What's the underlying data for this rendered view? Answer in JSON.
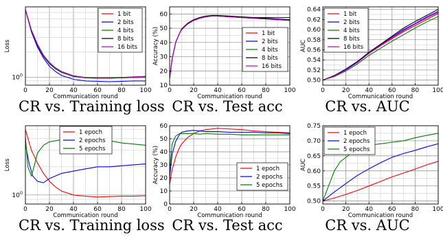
{
  "captions": [
    "CR vs. Training loss",
    "CR vs. Test acc",
    "CR vs. AUC",
    "CR vs. Training loss",
    "CR vs. Test acc",
    "CR vs. AUC"
  ],
  "chart_data": [
    {
      "type": "line",
      "xlabel": "Communication round",
      "ylabel": "Loss",
      "xlim": [
        0,
        100
      ],
      "xticks": [
        0,
        20,
        40,
        60,
        80,
        100
      ],
      "yscale": "log",
      "yticks": [
        1
      ],
      "ytick_labels": [
        "10^0"
      ],
      "grid": true,
      "legend": "top-right",
      "series": [
        {
          "name": "1 bit",
          "color": "#ff0000",
          "x": [
            0,
            5,
            10,
            15,
            20,
            25,
            30,
            40,
            50,
            60,
            70,
            80,
            90,
            100
          ],
          "y": [
            6.5,
            3.6,
            2.4,
            1.8,
            1.45,
            1.27,
            1.15,
            1.03,
            0.99,
            0.98,
            0.98,
            0.99,
            1.0,
            1.0
          ]
        },
        {
          "name": "2 bits",
          "color": "#0000ff",
          "x": [
            0,
            5,
            10,
            15,
            20,
            25,
            30,
            40,
            50,
            60,
            70,
            80,
            90,
            100
          ],
          "y": [
            6.5,
            3.5,
            2.3,
            1.7,
            1.35,
            1.17,
            1.05,
            0.94,
            0.9,
            0.89,
            0.88,
            0.89,
            0.9,
            0.9
          ]
        },
        {
          "name": "4 bits",
          "color": "#008000",
          "x": [
            0,
            5,
            10,
            15,
            20,
            25,
            30,
            40,
            50,
            60,
            70,
            80,
            90,
            100
          ],
          "y": [
            6.5,
            3.7,
            2.5,
            1.85,
            1.5,
            1.3,
            1.17,
            1.04,
            0.99,
            0.98,
            0.98,
            0.99,
            1.01,
            1.02
          ]
        },
        {
          "name": "8 bits",
          "color": "#000000",
          "x": [
            0,
            5,
            10,
            15,
            20,
            25,
            30,
            40,
            50,
            60,
            70,
            80,
            90,
            100
          ],
          "y": [
            6.5,
            3.6,
            2.4,
            1.78,
            1.45,
            1.26,
            1.14,
            1.02,
            0.98,
            0.97,
            0.97,
            0.98,
            0.99,
            1.0
          ]
        },
        {
          "name": "16 bits",
          "color": "#c000c0",
          "x": [
            0,
            5,
            10,
            15,
            20,
            25,
            30,
            40,
            50,
            60,
            70,
            80,
            90,
            100
          ],
          "y": [
            6.5,
            3.65,
            2.45,
            1.8,
            1.47,
            1.27,
            1.15,
            1.03,
            0.98,
            0.97,
            0.97,
            0.98,
            0.99,
            1.0
          ]
        }
      ]
    },
    {
      "type": "line",
      "xlabel": "Communication round",
      "ylabel": "Accuracy (%)",
      "xlim": [
        0,
        100
      ],
      "ylim": [
        10,
        65
      ],
      "xticks": [
        0,
        20,
        40,
        60,
        80,
        100
      ],
      "yticks": [
        10,
        20,
        30,
        40,
        50,
        60
      ],
      "grid": true,
      "legend": "bottom-right",
      "series": [
        {
          "name": "1 bit",
          "color": "#ff0000",
          "x": [
            0,
            2,
            5,
            8,
            10,
            15,
            20,
            25,
            30,
            35,
            40,
            50,
            60,
            70,
            80,
            90,
            100
          ],
          "y": [
            15,
            28,
            40,
            46,
            49,
            53,
            55.5,
            57,
            58,
            58.5,
            58.5,
            58,
            57.5,
            57,
            56.5,
            56,
            55.5
          ]
        },
        {
          "name": "2 bits",
          "color": "#0000ff",
          "x": [
            0,
            2,
            5,
            8,
            10,
            15,
            20,
            25,
            30,
            35,
            40,
            50,
            60,
            70,
            80,
            90,
            100
          ],
          "y": [
            15,
            28,
            40,
            46,
            49,
            53,
            55.5,
            57,
            58,
            58.5,
            58.5,
            58,
            57.5,
            57.5,
            57.5,
            57.5,
            57.5
          ]
        },
        {
          "name": "4 bits",
          "color": "#008000",
          "x": [
            0,
            2,
            5,
            8,
            10,
            15,
            20,
            25,
            30,
            35,
            40,
            50,
            60,
            70,
            80,
            90,
            100
          ],
          "y": [
            15,
            28,
            40,
            46,
            49,
            53,
            55.5,
            57,
            58,
            58.5,
            58.5,
            58,
            57.5,
            57,
            56.5,
            56,
            56
          ]
        },
        {
          "name": "8 bits",
          "color": "#000000",
          "x": [
            0,
            2,
            5,
            8,
            10,
            15,
            20,
            25,
            30,
            35,
            40,
            50,
            60,
            70,
            80,
            90,
            100
          ],
          "y": [
            15,
            28,
            40,
            46,
            49.5,
            53.5,
            56,
            57.5,
            58.5,
            59,
            59,
            58.5,
            58,
            57.5,
            57,
            56.5,
            56
          ]
        },
        {
          "name": "16 bits",
          "color": "#c000c0",
          "x": [
            0,
            2,
            5,
            8,
            10,
            15,
            20,
            25,
            30,
            35,
            40,
            50,
            60,
            70,
            80,
            90,
            100
          ],
          "y": [
            15,
            28,
            40,
            46,
            49,
            53,
            55.5,
            57,
            58,
            58.5,
            58.5,
            58,
            57.5,
            57,
            56.5,
            56,
            55.5
          ]
        }
      ]
    },
    {
      "type": "line",
      "xlabel": "Communication round",
      "ylabel": "AUC",
      "xlim": [
        0,
        100
      ],
      "ylim": [
        0.49,
        0.645
      ],
      "xticks": [
        0,
        20,
        40,
        60,
        80,
        100
      ],
      "yticks": [
        0.5,
        0.52,
        0.54,
        0.56,
        0.58,
        0.6,
        0.62,
        0.64
      ],
      "grid": true,
      "legend": "top-left",
      "series": [
        {
          "name": "1 bit",
          "color": "#ff0000",
          "x": [
            0,
            10,
            20,
            30,
            40,
            50,
            60,
            70,
            80,
            90,
            100
          ],
          "y": [
            0.5,
            0.508,
            0.52,
            0.535,
            0.553,
            0.568,
            0.582,
            0.596,
            0.608,
            0.62,
            0.632
          ]
        },
        {
          "name": "2 bits",
          "color": "#0000ff",
          "x": [
            0,
            10,
            20,
            30,
            40,
            50,
            60,
            70,
            80,
            90,
            100
          ],
          "y": [
            0.5,
            0.509,
            0.522,
            0.537,
            0.555,
            0.57,
            0.585,
            0.6,
            0.612,
            0.625,
            0.636
          ]
        },
        {
          "name": "4 bits",
          "color": "#008000",
          "x": [
            0,
            10,
            20,
            30,
            40,
            50,
            60,
            70,
            80,
            90,
            100
          ],
          "y": [
            0.5,
            0.507,
            0.518,
            0.532,
            0.549,
            0.563,
            0.577,
            0.59,
            0.603,
            0.615,
            0.626
          ]
        },
        {
          "name": "8 bits",
          "color": "#000000",
          "x": [
            0,
            10,
            20,
            30,
            40,
            50,
            60,
            70,
            80,
            90,
            100
          ],
          "y": [
            0.5,
            0.509,
            0.521,
            0.536,
            0.555,
            0.571,
            0.587,
            0.603,
            0.616,
            0.628,
            0.64
          ]
        },
        {
          "name": "16 bits",
          "color": "#c000c0",
          "x": [
            0,
            10,
            20,
            30,
            40,
            50,
            60,
            70,
            80,
            90,
            100
          ],
          "y": [
            0.5,
            0.508,
            0.52,
            0.535,
            0.553,
            0.569,
            0.584,
            0.598,
            0.611,
            0.623,
            0.634
          ]
        }
      ]
    },
    {
      "type": "line",
      "xlabel": "Communication round",
      "ylabel": "Loss",
      "xlim": [
        0,
        100
      ],
      "xticks": [
        0,
        20,
        40,
        60,
        80,
        100
      ],
      "yscale": "log",
      "yticks": [
        1
      ],
      "ytick_labels": [
        "10^0"
      ],
      "grid": true,
      "legend": "top-center",
      "series": [
        {
          "name": "1 epoch",
          "color": "#ff0000",
          "x": [
            0,
            5,
            10,
            15,
            20,
            25,
            30,
            40,
            50,
            60,
            70,
            80,
            90,
            100
          ],
          "y": [
            5.0,
            3.0,
            2.2,
            1.7,
            1.4,
            1.22,
            1.1,
            1.0,
            0.97,
            0.95,
            0.96,
            0.97,
            0.97,
            0.98
          ]
        },
        {
          "name": "2 epochs",
          "color": "#0000ff",
          "x": [
            0,
            3,
            6,
            10,
            15,
            20,
            30,
            40,
            50,
            60,
            70,
            80,
            90,
            100
          ],
          "y": [
            3.5,
            2.2,
            1.6,
            1.4,
            1.35,
            1.5,
            1.7,
            1.8,
            1.9,
            2.0,
            2.0,
            2.05,
            2.1,
            2.15
          ]
        },
        {
          "name": "5 epochs",
          "color": "#008000",
          "x": [
            0,
            2,
            5,
            8,
            10,
            15,
            20,
            30,
            40,
            50,
            60,
            70,
            80,
            90,
            100
          ],
          "y": [
            4.2,
            2.0,
            1.6,
            2.2,
            2.8,
            3.4,
            3.7,
            3.9,
            3.8,
            3.7,
            3.7,
            3.8,
            3.6,
            3.5,
            3.4
          ]
        }
      ]
    },
    {
      "type": "line",
      "xlabel": "Communication round",
      "ylabel": "Accuracy (%)",
      "xlim": [
        0,
        100
      ],
      "ylim": [
        0,
        60
      ],
      "xticks": [
        0,
        20,
        40,
        60,
        80,
        100
      ],
      "yticks": [
        0,
        10,
        20,
        30,
        40,
        50,
        60
      ],
      "grid": true,
      "legend": "bottom-right",
      "series": [
        {
          "name": "1 epoch",
          "color": "#ff0000",
          "x": [
            0,
            2,
            5,
            8,
            10,
            15,
            20,
            25,
            30,
            40,
            50,
            60,
            70,
            80,
            90,
            100
          ],
          "y": [
            15,
            26,
            36,
            43,
            46,
            51,
            54,
            56,
            57,
            58,
            57.5,
            57,
            56,
            55.5,
            55,
            54.5
          ]
        },
        {
          "name": "2 epochs",
          "color": "#0000ff",
          "x": [
            0,
            2,
            5,
            8,
            10,
            15,
            20,
            25,
            30,
            40,
            50,
            60,
            70,
            80,
            90,
            100
          ],
          "y": [
            20,
            38,
            48,
            53,
            55,
            56,
            56.5,
            56,
            55.5,
            55.5,
            55,
            55,
            55,
            54.5,
            54.5,
            54
          ]
        },
        {
          "name": "5 epochs",
          "color": "#008000",
          "x": [
            0,
            2,
            5,
            8,
            10,
            15,
            20,
            25,
            30,
            40,
            50,
            60,
            70,
            80,
            90,
            100
          ],
          "y": [
            25,
            46,
            52,
            54,
            54,
            54,
            54,
            53.5,
            54,
            53.5,
            53.5,
            53,
            53,
            53,
            53,
            53
          ]
        }
      ]
    },
    {
      "type": "line",
      "xlabel": "Communication round",
      "ylabel": "AUC",
      "xlim": [
        0,
        100
      ],
      "ylim": [
        0.49,
        0.75
      ],
      "xticks": [
        0,
        20,
        40,
        60,
        80,
        100
      ],
      "yticks": [
        0.5,
        0.55,
        0.6,
        0.65,
        0.7,
        0.75
      ],
      "grid": true,
      "legend": "top-left",
      "series": [
        {
          "name": "1 epoch",
          "color": "#ff0000",
          "x": [
            0,
            10,
            20,
            30,
            40,
            50,
            60,
            70,
            80,
            90,
            100
          ],
          "y": [
            0.5,
            0.51,
            0.522,
            0.535,
            0.55,
            0.565,
            0.58,
            0.593,
            0.606,
            0.62,
            0.632
          ]
        },
        {
          "name": "2 epochs",
          "color": "#0000ff",
          "x": [
            0,
            10,
            20,
            30,
            40,
            50,
            60,
            70,
            80,
            90,
            100
          ],
          "y": [
            0.5,
            0.53,
            0.558,
            0.585,
            0.607,
            0.627,
            0.645,
            0.658,
            0.668,
            0.68,
            0.69
          ]
        },
        {
          "name": "5 epochs",
          "color": "#008000",
          "x": [
            0,
            5,
            10,
            15,
            20,
            25,
            30,
            40,
            50,
            60,
            70,
            80,
            90,
            100
          ],
          "y": [
            0.5,
            0.55,
            0.6,
            0.63,
            0.645,
            0.66,
            0.675,
            0.685,
            0.69,
            0.695,
            0.7,
            0.71,
            0.718,
            0.725
          ]
        }
      ]
    }
  ]
}
